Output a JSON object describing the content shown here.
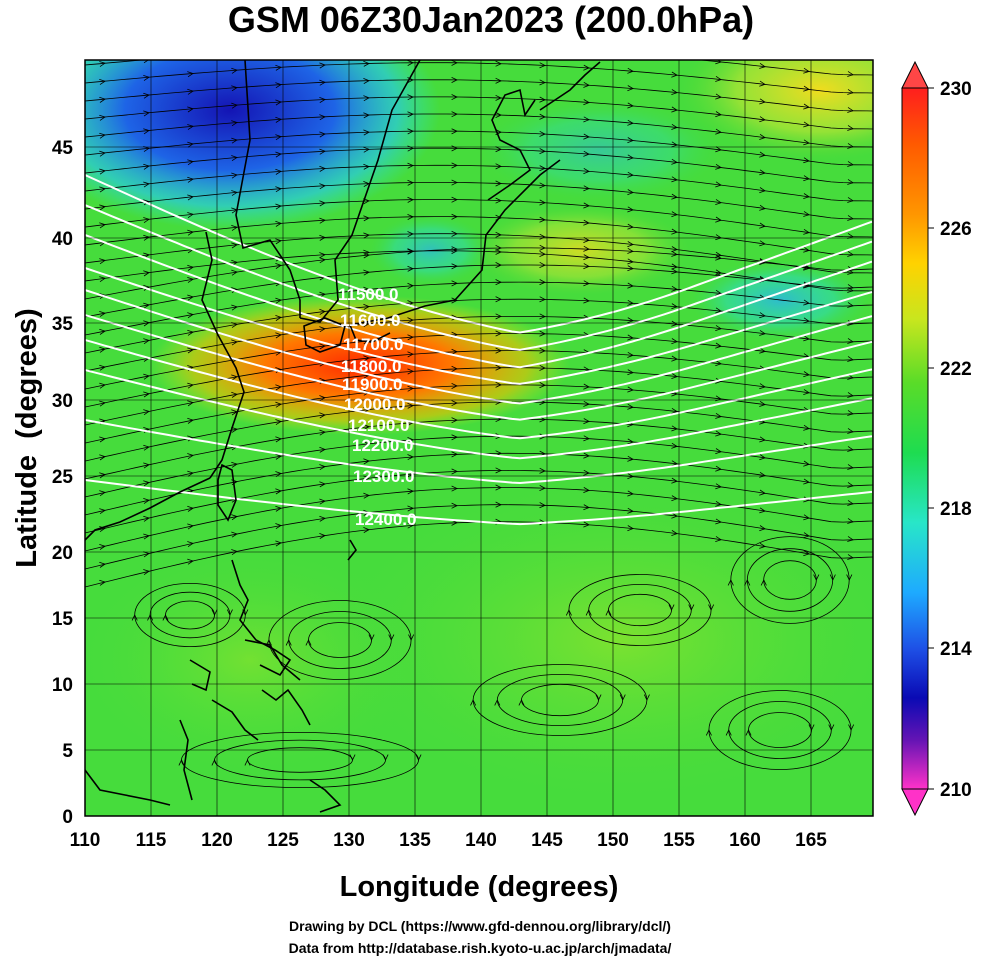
{
  "title": "GSM 06Z30Jan2023 (200.0hPa)",
  "x_axis": {
    "label": "Longitude (degrees)",
    "ticks": [
      "110",
      "115",
      "120",
      "125",
      "130",
      "135",
      "140",
      "145",
      "150",
      "155",
      "160",
      "165"
    ]
  },
  "y_axis": {
    "label": "Latitude  (degrees)",
    "ticks": [
      "0",
      "5",
      "10",
      "15",
      "20",
      "25",
      "30",
      "35",
      "40",
      "45"
    ]
  },
  "colorbar": {
    "labels": [
      "230",
      "226",
      "222",
      "218",
      "214",
      "210"
    ],
    "colors": [
      "#ff1e46",
      "#ffd200",
      "#32d232",
      "#28e6e6",
      "#0014c8",
      "#ff32c8"
    ]
  },
  "contour_labels": [
    "11500.0",
    "11600.0",
    "11700.0",
    "11800.0",
    "11900.0",
    "12000.0",
    "12100.0",
    "12200.0",
    "12300.0",
    "12400.0"
  ],
  "credits": {
    "line1": "Drawing by DCL (https://www.gfd-dennou.org/library/dcl/)",
    "line2": "Data from http://database.rish.kyoto-u.ac.jp/arch/jmadata/"
  }
}
